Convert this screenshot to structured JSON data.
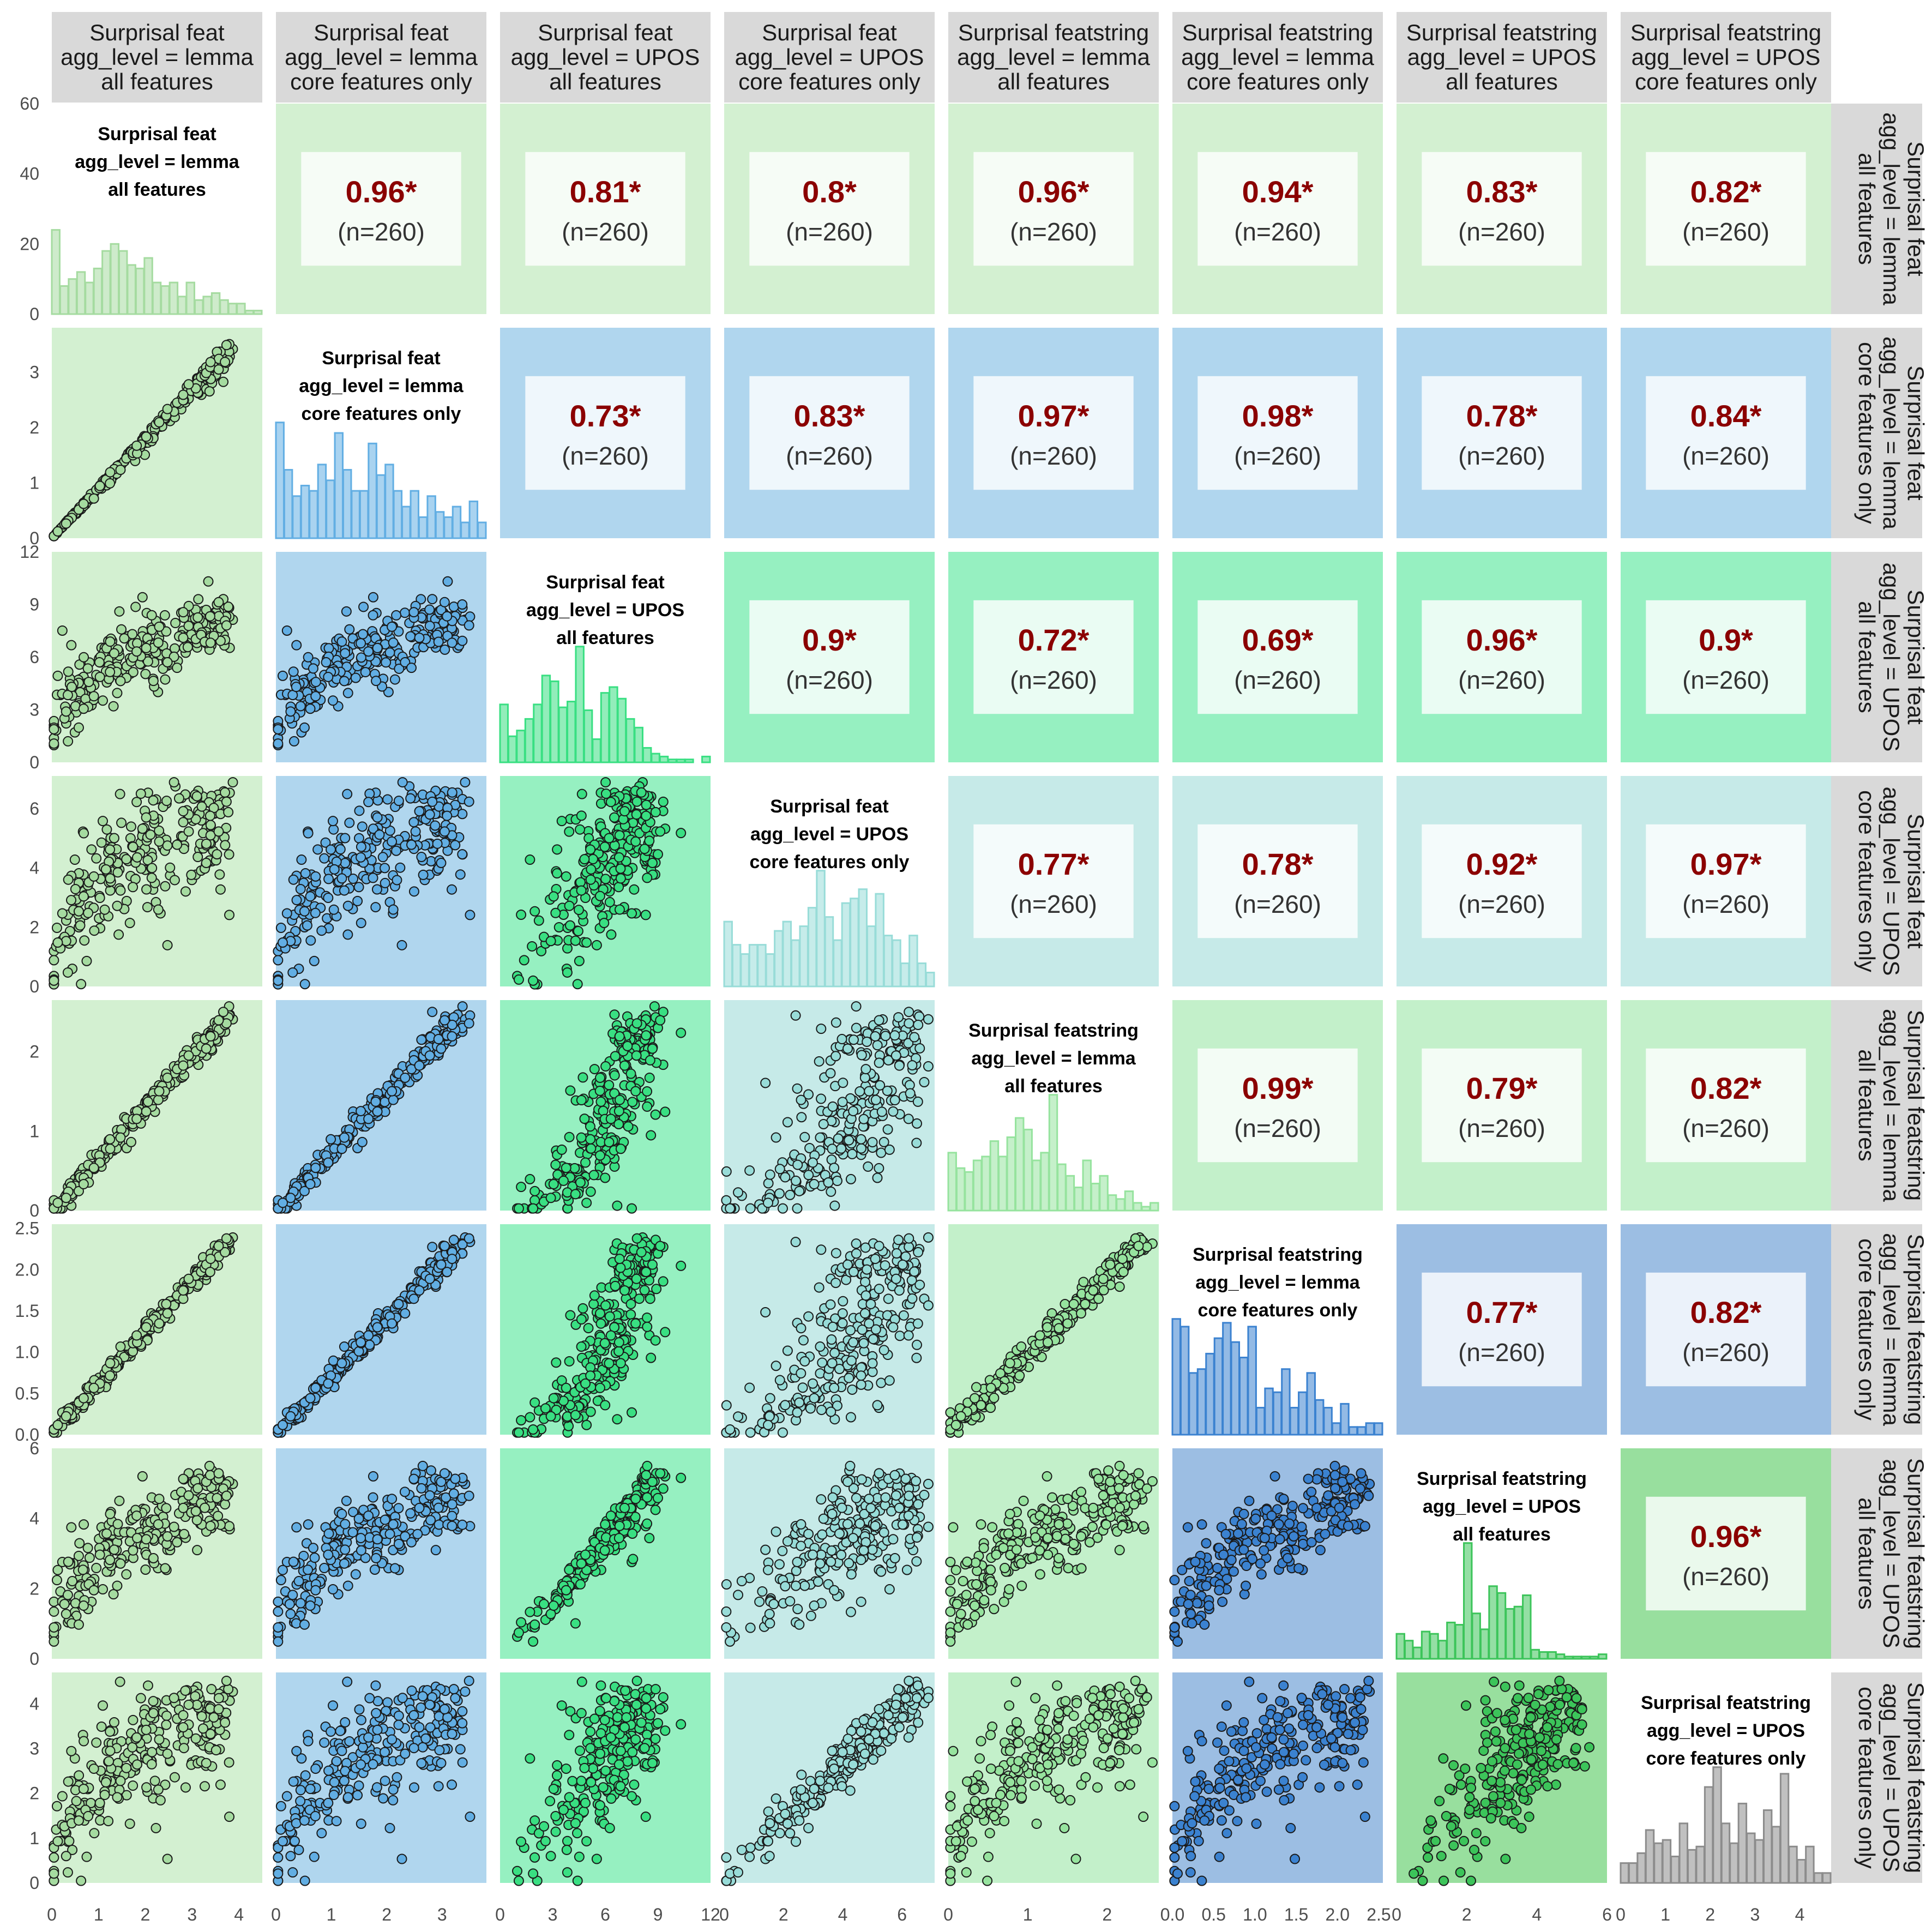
{
  "chart_data": {
    "type": "scatter-matrix",
    "n_points": 260,
    "variables": [
      {
        "label": [
          "Surprisal feat",
          "agg_level = lemma",
          "all features"
        ],
        "color": "#a5dba0",
        "fill": "#d3f0d1",
        "ticks": [
          0,
          1,
          2,
          3,
          4
        ],
        "range": [
          0,
          4.5
        ]
      },
      {
        "label": [
          "Surprisal feat",
          "agg_level = lemma",
          "core features only"
        ],
        "color": "#62aee3",
        "fill": "#b0d6ee",
        "ticks": [
          0,
          1,
          2,
          3
        ],
        "range": [
          0,
          3.8
        ]
      },
      {
        "label": [
          "Surprisal feat",
          "agg_level = UPOS",
          "all features"
        ],
        "color": "#39df82",
        "fill": "#96f0c1",
        "ticks": [
          0,
          3,
          6,
          9,
          12
        ],
        "range": [
          0,
          12
        ]
      },
      {
        "label": [
          "Surprisal feat",
          "agg_level = UPOS",
          "core features only"
        ],
        "color": "#98dcd8",
        "fill": "#c6eae8",
        "ticks": [
          0,
          2,
          4,
          6
        ],
        "range": [
          0,
          7.1
        ]
      },
      {
        "label": [
          "Surprisal featstring",
          "agg_level = lemma",
          "all features"
        ],
        "color": "#96e39e",
        "fill": "#c3f0ca",
        "ticks": [
          0,
          1,
          2
        ],
        "range": [
          0,
          2.65
        ]
      },
      {
        "label": [
          "Surprisal featstring",
          "agg_level = lemma",
          "core features only"
        ],
        "color": "#3b82d0",
        "fill": "#9cbee3",
        "ticks": [
          0.0,
          0.5,
          1.0,
          1.5,
          2.0,
          2.5
        ],
        "range": [
          0,
          2.55
        ]
      },
      {
        "label": [
          "Surprisal featstring",
          "agg_level = UPOS",
          "all features"
        ],
        "color": "#3cc45a",
        "fill": "#98df9e",
        "ticks": [
          0,
          2,
          4,
          6
        ],
        "range": [
          0,
          6
        ]
      },
      {
        "label": [
          "Surprisal featstring",
          "agg_level = UPOS",
          "core features only"
        ],
        "color": "#8c8c8c",
        "fill": "#ffffff",
        "ticks": [
          0,
          1,
          2,
          3,
          4
        ],
        "range": [
          0,
          4.7
        ]
      }
    ],
    "first_panel_count_axis": {
      "ticks": [
        0,
        20,
        40,
        60
      ],
      "range": [
        0,
        60
      ]
    },
    "correlations": [
      {
        "row": 0,
        "col": 1,
        "r": "0.96*",
        "n": "(n=260)"
      },
      {
        "row": 0,
        "col": 2,
        "r": "0.81*",
        "n": "(n=260)"
      },
      {
        "row": 0,
        "col": 3,
        "r": "0.8*",
        "n": "(n=260)"
      },
      {
        "row": 0,
        "col": 4,
        "r": "0.96*",
        "n": "(n=260)"
      },
      {
        "row": 0,
        "col": 5,
        "r": "0.94*",
        "n": "(n=260)"
      },
      {
        "row": 0,
        "col": 6,
        "r": "0.83*",
        "n": "(n=260)"
      },
      {
        "row": 0,
        "col": 7,
        "r": "0.82*",
        "n": "(n=260)"
      },
      {
        "row": 1,
        "col": 2,
        "r": "0.73*",
        "n": "(n=260)"
      },
      {
        "row": 1,
        "col": 3,
        "r": "0.83*",
        "n": "(n=260)"
      },
      {
        "row": 1,
        "col": 4,
        "r": "0.97*",
        "n": "(n=260)"
      },
      {
        "row": 1,
        "col": 5,
        "r": "0.98*",
        "n": "(n=260)"
      },
      {
        "row": 1,
        "col": 6,
        "r": "0.78*",
        "n": "(n=260)"
      },
      {
        "row": 1,
        "col": 7,
        "r": "0.84*",
        "n": "(n=260)"
      },
      {
        "row": 2,
        "col": 3,
        "r": "0.9*",
        "n": "(n=260)"
      },
      {
        "row": 2,
        "col": 4,
        "r": "0.72*",
        "n": "(n=260)"
      },
      {
        "row": 2,
        "col": 5,
        "r": "0.69*",
        "n": "(n=260)"
      },
      {
        "row": 2,
        "col": 6,
        "r": "0.96*",
        "n": "(n=260)"
      },
      {
        "row": 2,
        "col": 7,
        "r": "0.9*",
        "n": "(n=260)"
      },
      {
        "row": 3,
        "col": 4,
        "r": "0.77*",
        "n": "(n=260)"
      },
      {
        "row": 3,
        "col": 5,
        "r": "0.78*",
        "n": "(n=260)"
      },
      {
        "row": 3,
        "col": 6,
        "r": "0.92*",
        "n": "(n=260)"
      },
      {
        "row": 3,
        "col": 7,
        "r": "0.97*",
        "n": "(n=260)"
      },
      {
        "row": 4,
        "col": 5,
        "r": "0.99*",
        "n": "(n=260)"
      },
      {
        "row": 4,
        "col": 6,
        "r": "0.79*",
        "n": "(n=260)"
      },
      {
        "row": 4,
        "col": 7,
        "r": "0.82*",
        "n": "(n=260)"
      },
      {
        "row": 5,
        "col": 6,
        "r": "0.77*",
        "n": "(n=260)"
      },
      {
        "row": 5,
        "col": 7,
        "r": "0.82*",
        "n": "(n=260)"
      },
      {
        "row": 6,
        "col": 7,
        "r": "0.96*",
        "n": "(n=260)"
      }
    ],
    "histograms": [
      [
        24,
        8,
        10,
        12,
        9,
        13,
        18,
        20,
        18,
        14,
        13,
        16,
        9,
        8,
        9,
        5,
        9,
        4,
        5,
        6,
        4,
        3,
        3,
        1,
        1
      ],
      [
        22,
        13,
        8,
        10,
        9,
        14,
        11,
        20,
        13,
        9,
        9,
        18,
        12,
        14,
        9,
        6,
        9,
        4,
        8,
        5,
        4,
        6,
        3,
        7,
        3
      ],
      [
        20,
        9,
        11,
        15,
        20,
        30,
        28,
        19,
        21,
        40,
        18,
        8,
        24,
        26,
        22,
        15,
        12,
        5,
        3,
        2,
        1,
        1,
        1,
        0,
        2
      ],
      [
        14,
        9,
        7,
        9,
        9,
        7,
        12,
        14,
        10,
        13,
        17,
        25,
        15,
        10,
        18,
        19,
        21,
        13,
        20,
        11,
        10,
        5,
        11,
        5,
        3
      ],
      [
        15,
        11,
        10,
        13,
        14,
        18,
        14,
        19,
        24,
        21,
        13,
        15,
        30,
        12,
        9,
        6,
        13,
        7,
        9,
        4,
        3,
        5,
        2,
        1,
        2
      ],
      [
        30,
        28,
        16,
        17,
        21,
        25,
        29,
        24,
        20,
        28,
        7,
        12,
        11,
        17,
        7,
        11,
        16,
        9,
        7,
        3,
        8,
        2,
        2,
        3,
        3
      ],
      [
        11,
        8,
        5,
        12,
        11,
        8,
        16,
        15,
        51,
        20,
        13,
        32,
        29,
        22,
        23,
        28,
        4,
        3,
        3,
        2,
        1,
        1,
        1,
        1,
        2
      ],
      [
        6,
        6,
        9,
        16,
        12,
        13,
        8,
        18,
        10,
        11,
        29,
        35,
        18,
        12,
        24,
        15,
        13,
        22,
        17,
        33,
        11,
        7,
        11,
        3,
        3
      ]
    ]
  }
}
